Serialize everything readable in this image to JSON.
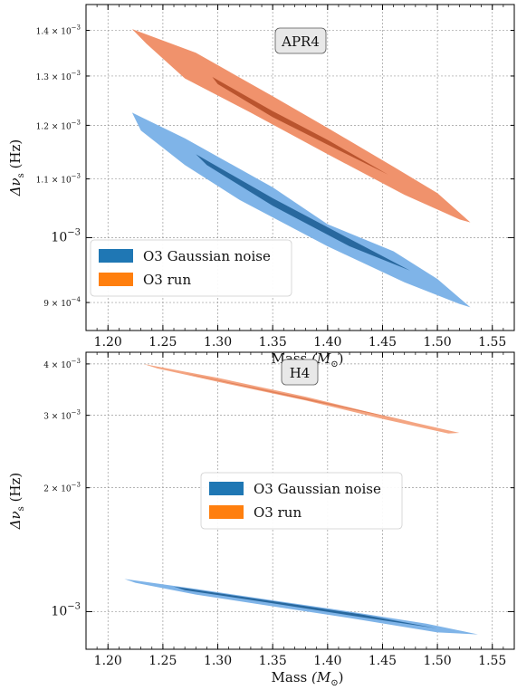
{
  "chart_data": [
    {
      "type": "area",
      "panel": "top",
      "annotation": "APR4",
      "xlabel": "Mass",
      "xlabel_unit": "(M",
      "xlabel_sub": "⊙",
      "xlabel_close": ")",
      "ylabel": "Δν",
      "ylabel_sub": "s",
      "ylabel_unit": "(Hz)",
      "xlim": [
        1.18,
        1.57
      ],
      "ylim": [
        0.00086,
        0.00146
      ],
      "yscale": "log",
      "grid": true,
      "legend_position": "lower-left",
      "x_ticks": [
        "1.20",
        "1.25",
        "1.30",
        "1.35",
        "1.40",
        "1.45",
        "1.50",
        "1.55"
      ],
      "x_tick_values": [
        1.2,
        1.25,
        1.3,
        1.35,
        1.4,
        1.45,
        1.5,
        1.55
      ],
      "y_ticks": [
        {
          "value": 0.0009,
          "mant": "9 × 10",
          "exp": "−4",
          "major": false
        },
        {
          "value": 0.001,
          "mant": "10",
          "exp": "−3",
          "major": true
        },
        {
          "value": 0.0011,
          "mant": "1.1 × 10",
          "exp": "−3",
          "major": false
        },
        {
          "value": 0.0012,
          "mant": "1.2 × 10",
          "exp": "−3",
          "major": false
        },
        {
          "value": 0.0013,
          "mant": "1.3 × 10",
          "exp": "−3",
          "major": false
        },
        {
          "value": 0.0014,
          "mant": "1.4 × 10",
          "exp": "−3",
          "major": false
        }
      ],
      "legend": [
        {
          "label": "O3 Gaussian noise",
          "color": "#1f77b4"
        },
        {
          "label": "O3 run",
          "color": "#ff7f0e"
        }
      ],
      "series": [
        {
          "name": "O3 Gaussian noise",
          "outer_color": "#7fb4e8",
          "inner_color": "#1f5f96",
          "outer": [
            [
              1.222,
              0.001225
            ],
            [
              1.27,
              0.001175
            ],
            [
              1.35,
              0.001085
            ],
            [
              1.4,
              0.001022
            ],
            [
              1.46,
              0.000978
            ],
            [
              1.5,
              0.000935
            ],
            [
              1.53,
              0.000893
            ],
            [
              1.52,
              0.000898
            ],
            [
              1.47,
              0.00093
            ],
            [
              1.4,
              0.000986
            ],
            [
              1.32,
              0.001063
            ],
            [
              1.27,
              0.001125
            ],
            [
              1.23,
              0.00119
            ]
          ],
          "inner": [
            [
              1.28,
              0.001145
            ],
            [
              1.35,
              0.001066
            ],
            [
              1.42,
              0.000998
            ],
            [
              1.475,
              0.000948
            ],
            [
              1.42,
              0.000986
            ],
            [
              1.35,
              0.001053
            ],
            [
              1.29,
              0.001125
            ]
          ]
        },
        {
          "name": "O3 run",
          "outer_color": "#f0926c",
          "inner_color": "#b44e28",
          "outer": [
            [
              1.222,
              0.001403
            ],
            [
              1.28,
              0.00135
            ],
            [
              1.35,
              0.001258
            ],
            [
              1.4,
              0.001195
            ],
            [
              1.46,
              0.001122
            ],
            [
              1.5,
              0.001075
            ],
            [
              1.53,
              0.001025
            ],
            [
              1.52,
              0.00103
            ],
            [
              1.47,
              0.001072
            ],
            [
              1.4,
              0.001145
            ],
            [
              1.33,
              0.001225
            ],
            [
              1.27,
              0.001295
            ],
            [
              1.235,
              0.00137
            ]
          ],
          "inner": [
            [
              1.295,
              0.001298
            ],
            [
              1.35,
              0.001228
            ],
            [
              1.4,
              0.001172
            ],
            [
              1.455,
              0.001108
            ],
            [
              1.4,
              0.001163
            ],
            [
              1.35,
              0.001216
            ],
            [
              1.3,
              0.001283
            ]
          ]
        }
      ]
    },
    {
      "type": "area",
      "panel": "bottom",
      "annotation": "H4",
      "xlabel": "Mass",
      "xlabel_unit": "(M",
      "xlabel_sub": "⊙",
      "xlabel_close": ")",
      "ylabel": "Δν",
      "ylabel_sub": "s",
      "ylabel_unit": "(Hz)",
      "xlim": [
        1.18,
        1.57
      ],
      "ylim": [
        0.00081,
        0.00427
      ],
      "yscale": "log",
      "grid": true,
      "legend_position": "center",
      "x_ticks": [
        "1.20",
        "1.25",
        "1.30",
        "1.35",
        "1.40",
        "1.45",
        "1.50",
        "1.55"
      ],
      "x_tick_values": [
        1.2,
        1.25,
        1.3,
        1.35,
        1.4,
        1.45,
        1.5,
        1.55
      ],
      "y_ticks": [
        {
          "value": 0.001,
          "mant": "10",
          "exp": "−3",
          "major": true
        },
        {
          "value": 0.002,
          "mant": "2 × 10",
          "exp": "−3",
          "major": false
        },
        {
          "value": 0.003,
          "mant": "3 × 10",
          "exp": "−3",
          "major": false
        },
        {
          "value": 0.004,
          "mant": "4 × 10",
          "exp": "−3",
          "major": false
        }
      ],
      "legend": [
        {
          "label": "O3 Gaussian noise",
          "color": "#1f77b4"
        },
        {
          "label": "O3 run",
          "color": "#ff7f0e"
        }
      ],
      "series": [
        {
          "name": "O3 Gaussian noise",
          "outer_color": "#7fb4e8",
          "inner_color": "#1f5f96",
          "outer": [
            [
              1.215,
              0.0012
            ],
            [
              1.28,
              0.001135
            ],
            [
              1.35,
              0.001065
            ],
            [
              1.42,
              0.001
            ],
            [
              1.49,
              0.000935
            ],
            [
              1.537,
              0.00088
            ],
            [
              1.5,
              0.00089
            ],
            [
              1.42,
              0.000965
            ],
            [
              1.35,
              0.00103
            ],
            [
              1.28,
              0.0011
            ],
            [
              1.225,
              0.001175
            ]
          ],
          "inner": [
            [
              1.26,
              0.00115
            ],
            [
              1.35,
              0.00106
            ],
            [
              1.43,
              0.000985
            ],
            [
              1.5,
              0.00091
            ],
            [
              1.43,
              0.00097
            ],
            [
              1.35,
              0.001048
            ],
            [
              1.27,
              0.001128
            ]
          ]
        },
        {
          "name": "O3 run",
          "outer_color": "#f4a582",
          "inner_color": "#e07b52",
          "outer": [
            [
              1.232,
              0.004
            ],
            [
              1.3,
              0.0037
            ],
            [
              1.38,
              0.00333
            ],
            [
              1.45,
              0.003
            ],
            [
              1.52,
              0.00272
            ],
            [
              1.51,
              0.00271
            ],
            [
              1.45,
              0.00294
            ],
            [
              1.38,
              0.00326
            ],
            [
              1.3,
              0.00362
            ],
            [
              1.245,
              0.0039
            ]
          ],
          "inner": [
            [
              1.27,
              0.0038
            ],
            [
              1.38,
              0.0033
            ],
            [
              1.48,
              0.00288
            ],
            [
              1.38,
              0.00327
            ],
            [
              1.28,
              0.00374
            ]
          ]
        }
      ]
    }
  ]
}
